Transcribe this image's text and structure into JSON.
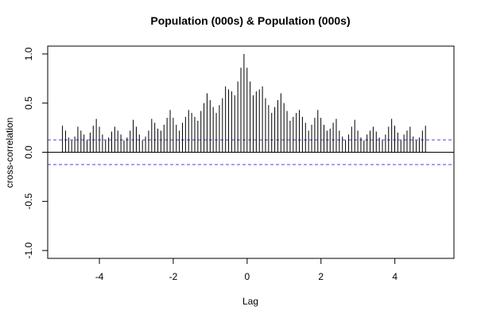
{
  "chart_data": {
    "type": "bar",
    "title": "Population (000s) & Population (000s)",
    "xlabel": "Lag",
    "ylabel": "cross-correlation",
    "xlim": [
      -5.4,
      5.6
    ],
    "ylim": [
      -1.08,
      1.08
    ],
    "x_ticks": [
      -4,
      -2,
      0,
      2,
      4
    ],
    "x_tick_labels": [
      "-4",
      "-2",
      "0",
      "2",
      "4"
    ],
    "y_ticks": [
      -1.0,
      -0.5,
      0.0,
      0.5,
      1.0
    ],
    "y_tick_labels": [
      "-1.0",
      "-0.5",
      "0.0",
      "0.5",
      "1.0"
    ],
    "lag_step": 0.0833,
    "lags_from": -5,
    "values": [
      0.27,
      0.22,
      0.15,
      0.12,
      0.16,
      0.26,
      0.22,
      0.18,
      0.12,
      0.2,
      0.27,
      0.34,
      0.26,
      0.18,
      0.12,
      0.15,
      0.21,
      0.26,
      0.22,
      0.18,
      0.12,
      0.15,
      0.22,
      0.33,
      0.26,
      0.18,
      0.12,
      0.16,
      0.22,
      0.34,
      0.3,
      0.24,
      0.22,
      0.28,
      0.35,
      0.43,
      0.35,
      0.28,
      0.22,
      0.3,
      0.36,
      0.43,
      0.4,
      0.36,
      0.32,
      0.42,
      0.5,
      0.6,
      0.53,
      0.46,
      0.4,
      0.48,
      0.55,
      0.67,
      0.64,
      0.62,
      0.58,
      0.72,
      0.86,
      1.0,
      0.86,
      0.72,
      0.58,
      0.62,
      0.64,
      0.67,
      0.55,
      0.48,
      0.4,
      0.46,
      0.53,
      0.6,
      0.5,
      0.42,
      0.32,
      0.36,
      0.4,
      0.43,
      0.36,
      0.3,
      0.22,
      0.28,
      0.35,
      0.43,
      0.35,
      0.28,
      0.22,
      0.24,
      0.3,
      0.34,
      0.22,
      0.16,
      0.12,
      0.18,
      0.26,
      0.33,
      0.22,
      0.15,
      0.12,
      0.18,
      0.22,
      0.26,
      0.21,
      0.15,
      0.12,
      0.18,
      0.26,
      0.34,
      0.27,
      0.2,
      0.12,
      0.18,
      0.22,
      0.26,
      0.16,
      0.12,
      0.15,
      0.22,
      0.27
    ],
    "ci_level": 0.125,
    "ci_color": "#4444ee",
    "bar_color": "#000000",
    "grid": false
  }
}
